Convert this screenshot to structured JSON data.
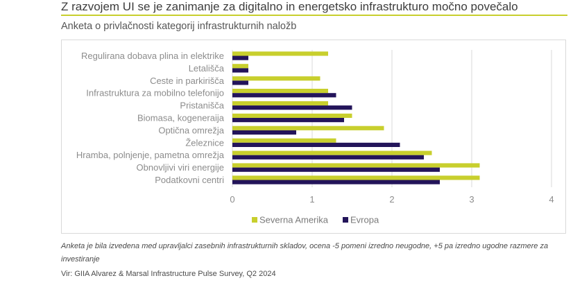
{
  "header": {
    "title": "Z razvojem UI se je zanimanje za digitalno in energetsko infrastrukturo močno povečalo",
    "subtitle": "Anketa o privlačnosti kategorij infrastrukturnih naložb"
  },
  "footer": {
    "note": "Anketa je bila izvedena med upravljalci zasebnih infrastrukturnih skladov, ocena -5 pomeni izredno neugodne, +5 pa izredno ugodne razmere za investiranje",
    "source": "Vir: GIIA Alvarez & Marsal Infrastructure Pulse Survey, Q2 2024"
  },
  "chart_data": {
    "type": "bar",
    "orientation": "horizontal",
    "title": "",
    "xlabel": "",
    "ylabel": "",
    "xlim": [
      0,
      4
    ],
    "xticks": [
      0,
      1,
      2,
      3,
      4
    ],
    "grid": true,
    "legend_position": "bottom",
    "categories": [
      "Regulirana dobava plina in elektrike",
      "Letališča",
      "Ceste in parkirišča",
      "Infrastruktura za mobilno telefonijo",
      "Pristanišča",
      "Biomasa, kogeneraija",
      "Optična omrežja",
      "Železnice",
      "Hramba, polnjenje, pametna omrežja",
      "Obnovljivi viri energije",
      "Podatkovni centri"
    ],
    "series": [
      {
        "name": "Severna Amerika",
        "color": "#c8cf2d",
        "values": [
          1.2,
          0.2,
          1.1,
          1.2,
          1.2,
          1.5,
          1.9,
          1.3,
          2.5,
          3.1,
          3.1
        ]
      },
      {
        "name": "Evropa",
        "color": "#23145a",
        "values": [
          0.2,
          0.2,
          0.2,
          1.3,
          1.5,
          1.4,
          0.8,
          2.1,
          2.4,
          2.6,
          2.6
        ]
      }
    ]
  }
}
